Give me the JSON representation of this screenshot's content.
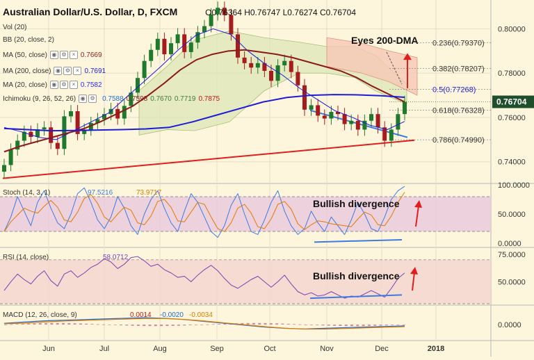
{
  "header": {
    "symbol": "Australian Dollar/U.S. Dollar, D, FXCM",
    "ohlc": "O0.76364  H0.76747  L0.76274  C0.76704"
  },
  "indicators": [
    {
      "label": "Vol (20)",
      "value": "",
      "color": "#999999"
    },
    {
      "label": "BB (20, close, 2)",
      "value": "",
      "color": "#999999"
    },
    {
      "label": "MA (50, close)",
      "value": "0.7669",
      "color": "#8b1a1a"
    },
    {
      "label": "MA (200, close)",
      "value": "0.7691",
      "color": "#1c1cd6"
    },
    {
      "label": "MA (20, close)",
      "value": "0.7582",
      "color": "#2a2aff"
    },
    {
      "label": "Ichimoku (9, 26, 52, 26)",
      "values": [
        "0.7588",
        "0.7598",
        "0.7670",
        "0.7719",
        "0.7875"
      ],
      "colors": [
        "#1e6bd6",
        "#8b1a1a",
        "#3a7d3a",
        "#3a7d3a",
        "#c41818"
      ]
    }
  ],
  "price_axis": {
    "ticks": [
      "0.80000",
      "0.78000",
      "0.76000",
      "0.74000"
    ],
    "last_price": "0.76704",
    "last_color": "#1f4e2a"
  },
  "fib": [
    {
      "label": "0.236(0.79370)",
      "color": "#333333"
    },
    {
      "label": "0.382(0.78207)",
      "color": "#333333"
    },
    {
      "label": "0.5(0.77268)",
      "color": "#1c1cd6"
    },
    {
      "label": "0.618(0.76328)",
      "color": "#333333"
    },
    {
      "label": "0.786(0.74990)",
      "color": "#333333"
    }
  ],
  "annotations": {
    "eyes": "Eyes 200-DMA",
    "stoch_div": "Bullish divergence",
    "rsi_div": "Bullish divergence"
  },
  "stoch": {
    "label": "Stoch (14, 3, 1)",
    "k": "97.5216",
    "d": "73.9717",
    "ticks": [
      "100.0000",
      "50.0000",
      "0.0000"
    ]
  },
  "rsi": {
    "label": "RSI (14, close)",
    "value": "58.0712",
    "ticks": [
      "75.0000",
      "50.0000"
    ]
  },
  "macd": {
    "label": "MACD (12, 26, close, 9)",
    "values": [
      "0.0014",
      "-0.0020",
      "-0.0034"
    ],
    "colors": [
      "#c41818",
      "#1c6bd6",
      "#e07b00"
    ],
    "ticks": [
      "0.0000"
    ]
  },
  "time_axis": [
    "Jun",
    "Jul",
    "Aug",
    "Sep",
    "Oct",
    "Nov",
    "Dec",
    "2018"
  ],
  "colors": {
    "background": "#fdf6dc",
    "up": "#1f7a2e",
    "down": "#a61c1c",
    "ma50": "#8b1a1a",
    "ma200": "#1c1cd6",
    "trend": "#e01e1e",
    "cloud_up": "#dce6b8",
    "cloud_down": "#f6c7b6"
  },
  "chart_data": {
    "type": "candlestick",
    "title": "Australian Dollar/U.S. Dollar, D, FXCM",
    "x_range": [
      "2017-05-10",
      "2018-01-10"
    ],
    "y_range": [
      0.7305,
      0.813
    ],
    "candle_close": [
      0.7385,
      0.7455,
      0.7495,
      0.7535,
      0.7512,
      0.7546,
      0.7555,
      0.7485,
      0.7458,
      0.7605,
      0.7628,
      0.7525,
      0.7545,
      0.7575,
      0.7592,
      0.7615,
      0.7638,
      0.7595,
      0.7652,
      0.7712,
      0.7778,
      0.7855,
      0.7905,
      0.7955,
      0.7885,
      0.7935,
      0.7975,
      0.7895,
      0.7938,
      0.7985,
      0.8012,
      0.8065,
      0.8095,
      0.8062,
      0.7975,
      0.787,
      0.7845,
      0.7825,
      0.7845,
      0.781,
      0.7765,
      0.7835,
      0.7855,
      0.7805,
      0.7745,
      0.7635,
      0.7655,
      0.7608,
      0.7595,
      0.7625,
      0.7615,
      0.757,
      0.7585,
      0.7545,
      0.7585,
      0.7615,
      0.7555,
      0.7495,
      0.7545,
      0.7615,
      0.767
    ],
    "ma50": [
      0.7445,
      0.747,
      0.749,
      0.751,
      0.753,
      0.755,
      0.758,
      0.7615,
      0.765,
      0.77,
      0.7755,
      0.7815,
      0.786,
      0.7885,
      0.79,
      0.7905,
      0.7895,
      0.7885,
      0.787,
      0.785,
      0.783,
      0.781,
      0.778,
      0.774,
      0.7705,
      0.767
    ],
    "ma200": [
      0.755,
      0.7545,
      0.754,
      0.7541,
      0.7543,
      0.7545,
      0.7548,
      0.7555,
      0.758,
      0.761,
      0.764,
      0.767,
      0.769,
      0.77,
      0.7703,
      0.7702,
      0.7698,
      0.7691
    ],
    "ma20": [
      0.7555,
      0.7535,
      0.751,
      0.75,
      0.754,
      0.758,
      0.762,
      0.769,
      0.776,
      0.783,
      0.7905,
      0.797,
      0.8,
      0.7975,
      0.79,
      0.784,
      0.779,
      0.773,
      0.768,
      0.763,
      0.76,
      0.7565,
      0.7545,
      0.7582
    ],
    "trendline_red": [
      0.7325,
      0.7497
    ],
    "support_blue": [
      0.7632,
      0.751
    ],
    "stoch_k": [
      20,
      45,
      80,
      55,
      30,
      70,
      90,
      60,
      35,
      25,
      50,
      85,
      95,
      70,
      40,
      25,
      45,
      80,
      60,
      30,
      15,
      50,
      75,
      90,
      60,
      35,
      20,
      55,
      85,
      70,
      45,
      20,
      10,
      30,
      65,
      85,
      50,
      20,
      15,
      40,
      70,
      90,
      55,
      30,
      15,
      25,
      55,
      35,
      20,
      45,
      30,
      15,
      40,
      70,
      50,
      25,
      20,
      45,
      75,
      90,
      97.5
    ],
    "rsi": [
      42,
      50,
      57,
      52,
      48,
      55,
      60,
      51,
      46,
      57,
      60,
      54,
      58,
      63,
      66,
      71,
      68,
      62,
      66,
      72,
      73,
      69,
      64,
      66,
      61,
      58,
      54,
      55,
      50,
      56,
      61,
      65,
      60,
      53,
      47,
      44,
      48,
      52,
      55,
      50,
      45,
      50,
      56,
      48,
      41,
      38,
      40,
      37,
      38,
      41,
      38,
      35,
      37,
      36,
      39,
      42,
      39,
      36,
      44,
      53,
      58
    ],
    "macd": [
      0.002,
      0.004,
      0.006,
      0.007,
      0.008,
      0.009,
      0.01,
      0.011,
      0.01,
      0.008,
      0.005,
      0.002,
      -0.001,
      -0.004,
      -0.006,
      -0.007,
      -0.006,
      -0.005,
      -0.004,
      -0.003,
      -0.002
    ]
  }
}
